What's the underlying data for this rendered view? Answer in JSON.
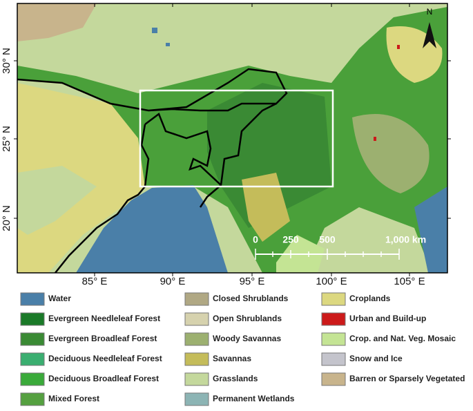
{
  "map": {
    "x_labels": [
      "85° E",
      "90° E",
      "95° E",
      "100° E",
      "105° E"
    ],
    "y_labels": [
      "30° N",
      "25° N",
      "20° N"
    ],
    "north": "N",
    "scale_bar": [
      "0",
      "250",
      "500",
      "1,000 km"
    ]
  },
  "legend": [
    {
      "label": "Water",
      "color": "#4a7fa8"
    },
    {
      "label": "Evergreen Needleleaf Forest",
      "color": "#1a7a28"
    },
    {
      "label": "Evergreen Broadleaf Forest",
      "color": "#3a8a34"
    },
    {
      "label": "Deciduous Needleleaf Forest",
      "color": "#3aae70"
    },
    {
      "label": "Deciduous Broadleaf Forest",
      "color": "#3aaa3a"
    },
    {
      "label": "Mixed Forest",
      "color": "#55a040"
    },
    {
      "label": "Closed Shrublands",
      "color": "#b0a884"
    },
    {
      "label": "Open Shrublands",
      "color": "#d6d2ae"
    },
    {
      "label": "Woody Savannas",
      "color": "#9cb070"
    },
    {
      "label": "Savannas",
      "color": "#c4bc5a"
    },
    {
      "label": "Grasslands",
      "color": "#c4d89c"
    },
    {
      "label": "Permanent Wetlands",
      "color": "#8cb4b4"
    },
    {
      "label": "Croplands",
      "color": "#dcd880"
    },
    {
      "label": "Urban and Build-up",
      "color": "#cc1a1a"
    },
    {
      "label": "Crop. and Nat. Veg. Mosaic",
      "color": "#c4e494"
    },
    {
      "label": "Snow and Ice",
      "color": "#c4c4cc"
    },
    {
      "label": "Barren or Sparsely Vegetated",
      "color": "#c8b48c"
    }
  ]
}
